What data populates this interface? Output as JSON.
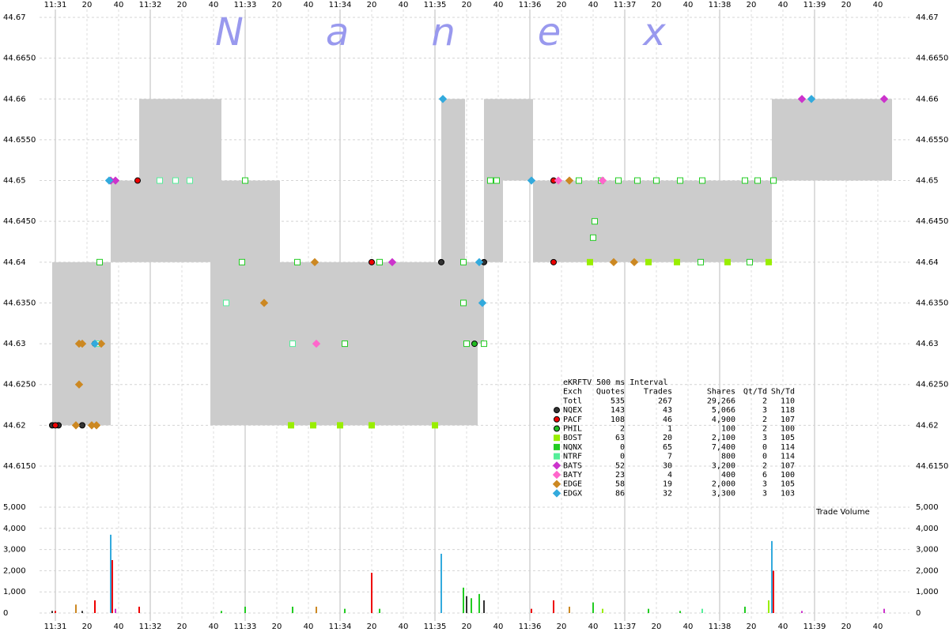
{
  "watermark": "Nanex",
  "stats_table": {
    "title": "eKRFTV 500 ms Interval",
    "columns": [
      "Exch",
      "Quotes",
      "Trades",
      "Shares",
      "Qt/Td",
      "Sh/Td"
    ],
    "total": [
      "Totl",
      "535",
      "267",
      "29,266",
      "2",
      "110"
    ],
    "rows": [
      [
        "143",
        "43",
        "5,066",
        "3",
        "118"
      ],
      [
        "108",
        "46",
        "4,900",
        "2",
        "107"
      ],
      [
        "2",
        "1",
        "100",
        "2",
        "100"
      ],
      [
        "63",
        "20",
        "2,100",
        "3",
        "105"
      ],
      [
        "0",
        "65",
        "7,400",
        "0",
        "114"
      ],
      [
        "0",
        "7",
        "800",
        "0",
        "114"
      ],
      [
        "52",
        "30",
        "3,200",
        "2",
        "107"
      ],
      [
        "23",
        "4",
        "400",
        "6",
        "100"
      ],
      [
        "58",
        "19",
        "2,000",
        "3",
        "105"
      ],
      [
        "86",
        "32",
        "3,300",
        "3",
        "103"
      ]
    ]
  },
  "chart_data": [
    {
      "type": "scatter",
      "grid": true,
      "xlim": [
        "11:30:50",
        "11:40:00"
      ],
      "xticks": [
        {
          "value": "11:31:00",
          "label": "11:31"
        },
        {
          "value": "11:31:20",
          "label": "20"
        },
        {
          "value": "11:31:40",
          "label": "40"
        },
        {
          "value": "11:32:00",
          "label": "11:32"
        },
        {
          "value": "11:32:20",
          "label": "20"
        },
        {
          "value": "11:32:40",
          "label": "40"
        },
        {
          "value": "11:33:00",
          "label": "11:33"
        },
        {
          "value": "11:33:20",
          "label": "20"
        },
        {
          "value": "11:33:40",
          "label": "40"
        },
        {
          "value": "11:34:00",
          "label": "11:34"
        },
        {
          "value": "11:34:20",
          "label": "20"
        },
        {
          "value": "11:34:40",
          "label": "40"
        },
        {
          "value": "11:35:00",
          "label": "11:35"
        },
        {
          "value": "11:35:20",
          "label": "20"
        },
        {
          "value": "11:35:40",
          "label": "40"
        },
        {
          "value": "11:36:00",
          "label": "11:36"
        },
        {
          "value": "11:36:20",
          "label": "20"
        },
        {
          "value": "11:36:40",
          "label": "40"
        },
        {
          "value": "11:37:00",
          "label": "11:37"
        },
        {
          "value": "11:37:20",
          "label": "20"
        },
        {
          "value": "11:37:40",
          "label": "40"
        },
        {
          "value": "11:38:00",
          "label": "11:38"
        },
        {
          "value": "11:38:20",
          "label": "20"
        },
        {
          "value": "11:38:40",
          "label": "40"
        },
        {
          "value": "11:39:00",
          "label": "11:39"
        },
        {
          "value": "11:39:20",
          "label": "20"
        },
        {
          "value": "11:39:40",
          "label": "40"
        }
      ],
      "ylim": [
        44.615,
        44.67
      ],
      "yticks": [
        {
          "value": 44.615,
          "label": "44.6150"
        },
        44.62,
        {
          "value": 44.625,
          "label": "44.6250"
        },
        44.63,
        {
          "value": 44.635,
          "label": "44.6350"
        },
        44.64,
        {
          "value": 44.645,
          "label": "44.6450"
        },
        44.65,
        {
          "value": 44.655,
          "label": "44.6550"
        },
        44.66,
        {
          "value": 44.665,
          "label": "44.6650"
        },
        44.67
      ],
      "spread_color": "#cccccc",
      "spread": {
        "start": [
          "11:30:58",
          "11:31:35",
          "11:31:53",
          "11:32:38",
          "11:32:45",
          "11:33:22",
          "11:35:04",
          "11:35:19",
          "11:35:27",
          "11:35:31",
          "11:35:43",
          "11:36:02",
          "11:38:33"
        ],
        "end": [
          "11:31:35",
          "11:31:53",
          "11:32:38",
          "11:32:45",
          "11:33:22",
          "11:35:04",
          "11:35:19",
          "11:35:27",
          "11:35:31",
          "11:35:43",
          "11:36:02",
          "11:38:33",
          "11:39:49"
        ],
        "low": [
          44.62,
          44.64,
          44.64,
          44.62,
          44.62,
          44.62,
          44.62,
          44.62,
          44.63,
          44.64,
          44.65,
          44.64,
          44.65
        ],
        "high": [
          44.64,
          44.65,
          44.66,
          44.66,
          44.65,
          44.64,
          44.66,
          44.64,
          44.64,
          44.66,
          44.66,
          44.65,
          44.66
        ]
      },
      "series": [
        {
          "name": "NQEX",
          "color": "#333333",
          "marker": "circle",
          "filled": true,
          "x": [
            "11:30:58",
            "11:31:02",
            "11:31:17",
            "11:35:04",
            "11:35:31"
          ],
          "values": [
            44.62,
            44.62,
            44.62,
            44.64,
            44.64
          ]
        },
        {
          "name": "PACF",
          "color": "#ee0000",
          "marker": "circle",
          "filled": true,
          "x": [
            "11:31:00",
            "11:31:52",
            "11:34:20",
            "11:31:25",
            "11:36:15",
            "11:36:15"
          ],
          "values": [
            44.62,
            44.65,
            44.64,
            44.63,
            44.65,
            44.64
          ]
        },
        {
          "name": "PHIL",
          "color": "#22bb22",
          "marker": "circle",
          "filled": true,
          "x": [
            "11:35:25"
          ],
          "values": [
            44.63
          ]
        },
        {
          "name": "BOST",
          "color": "#99ee00",
          "marker": "square",
          "filled": true,
          "x": [
            "11:33:29",
            "11:33:43",
            "11:34:00",
            "11:34:20",
            "11:35:00",
            "11:36:38",
            "11:37:15",
            "11:37:33",
            "11:38:05",
            "11:38:31"
          ],
          "values": [
            44.62,
            44.62,
            44.62,
            44.62,
            44.62,
            44.64,
            44.64,
            44.64,
            44.64,
            44.64
          ]
        },
        {
          "name": "NQNX",
          "color": "#22cc22",
          "marker": "square",
          "filled": false,
          "x": [
            "11:31:28",
            "11:33:00",
            "11:32:58",
            "11:33:33",
            "11:34:25",
            "11:35:18",
            "11:34:03",
            "11:35:20",
            "11:35:31",
            "11:35:35",
            "11:35:39",
            "11:36:31",
            "11:36:45",
            "11:36:56",
            "11:37:08",
            "11:37:20",
            "11:37:35",
            "11:37:49",
            "11:38:16",
            "11:38:24",
            "11:38:34",
            "11:36:41",
            "11:36:40",
            "11:37:48",
            "11:38:19",
            "11:35:18"
          ],
          "values": [
            44.64,
            44.65,
            44.64,
            44.64,
            44.64,
            44.64,
            44.63,
            44.63,
            44.63,
            44.65,
            44.65,
            44.65,
            44.65,
            44.65,
            44.65,
            44.65,
            44.65,
            44.65,
            44.65,
            44.65,
            44.65,
            44.645,
            44.643,
            44.64,
            44.64,
            44.635
          ]
        },
        {
          "name": "NTRF",
          "color": "#55ee99",
          "marker": "square",
          "filled": false,
          "x": [
            "11:32:06",
            "11:32:16",
            "11:32:25",
            "11:32:48",
            "11:33:30",
            "11:31:26"
          ],
          "values": [
            44.65,
            44.65,
            44.65,
            44.635,
            44.63,
            44.63
          ]
        },
        {
          "name": "BATS",
          "color": "#cc33cc",
          "marker": "diamond",
          "filled": true,
          "x": [
            "11:31:35",
            "11:31:38",
            "11:34:33",
            "11:38:52",
            "11:39:44"
          ],
          "values": [
            44.65,
            44.65,
            44.64,
            44.66,
            44.66
          ]
        },
        {
          "name": "BATY",
          "color": "#ff66cc",
          "marker": "diamond",
          "filled": true,
          "x": [
            "11:33:45",
            "11:36:18",
            "11:36:46"
          ],
          "values": [
            44.63,
            44.65,
            44.65
          ]
        },
        {
          "name": "EDGE",
          "color": "#cc8822",
          "marker": "diamond",
          "filled": true,
          "x": [
            "11:31:15",
            "11:31:17",
            "11:31:15",
            "11:31:13",
            "11:31:23",
            "11:31:26",
            "11:31:29",
            "11:33:12",
            "11:33:44",
            "11:36:53",
            "11:37:06",
            "11:36:25"
          ],
          "values": [
            44.63,
            44.63,
            44.625,
            44.62,
            44.62,
            44.62,
            44.63,
            44.635,
            44.64,
            44.64,
            44.64,
            44.65
          ]
        },
        {
          "name": "EDGX",
          "color": "#33aadd",
          "marker": "diamond",
          "filled": true,
          "x": [
            "11:35:05",
            "11:38:58",
            "11:31:34",
            "11:36:01",
            "11:35:28",
            "11:35:30",
            "11:31:25"
          ],
          "values": [
            44.66,
            44.66,
            44.65,
            44.65,
            44.64,
            44.635,
            44.63
          ]
        }
      ]
    },
    {
      "type": "bar",
      "label": "Trade Volume",
      "grid": true,
      "ylim": [
        0,
        5000
      ],
      "yticks": [
        0,
        {
          "value": 1000,
          "label": "1,000"
        },
        {
          "value": 2000,
          "label": "2,000"
        },
        {
          "value": 3000,
          "label": "3,000"
        },
        {
          "value": 4000,
          "label": "4,000"
        },
        {
          "value": 5000,
          "label": "5,000"
        }
      ],
      "x": [
        "11:30:58",
        "11:31:00",
        "11:31:13",
        "11:31:17",
        "11:31:25",
        "11:31:35",
        "11:31:36",
        "11:31:38",
        "11:31:53",
        "11:32:45",
        "11:33:00",
        "11:33:30",
        "11:33:45",
        "11:34:03",
        "11:34:20",
        "11:34:25",
        "11:35:04",
        "11:35:18",
        "11:35:20",
        "11:35:23",
        "11:35:28",
        "11:35:31",
        "11:36:01",
        "11:36:15",
        "11:36:25",
        "11:36:40",
        "11:36:46",
        "11:37:15",
        "11:37:35",
        "11:37:49",
        "11:38:16",
        "11:38:31",
        "11:38:33",
        "11:38:34",
        "11:38:52",
        "11:39:44"
      ],
      "values": [
        100,
        100,
        400,
        100,
        600,
        3700,
        2500,
        200,
        300,
        100,
        300,
        300,
        300,
        200,
        1900,
        200,
        2800,
        1200,
        800,
        700,
        900,
        600,
        200,
        600,
        300,
        500,
        200,
        200,
        100,
        200,
        300,
        600,
        3400,
        2000,
        100,
        200
      ],
      "colors": [
        "#333333",
        "#ee0000",
        "#cc8822",
        "#333333",
        "#ee0000",
        "#33aadd",
        "#ee0000",
        "#cc33cc",
        "#ee0000",
        "#22cc22",
        "#22cc22",
        "#22cc22",
        "#cc8822",
        "#22cc22",
        "#ee0000",
        "#22cc22",
        "#33aadd",
        "#22cc22",
        "#333333",
        "#22cc22",
        "#22cc22",
        "#333333",
        "#ee0000",
        "#ee0000",
        "#cc8822",
        "#22cc22",
        "#99ee00",
        "#22cc22",
        "#22cc22",
        "#55ee99",
        "#22cc22",
        "#99ee00",
        "#33aadd",
        "#ee0000",
        "#cc33cc",
        "#cc33cc"
      ]
    }
  ]
}
